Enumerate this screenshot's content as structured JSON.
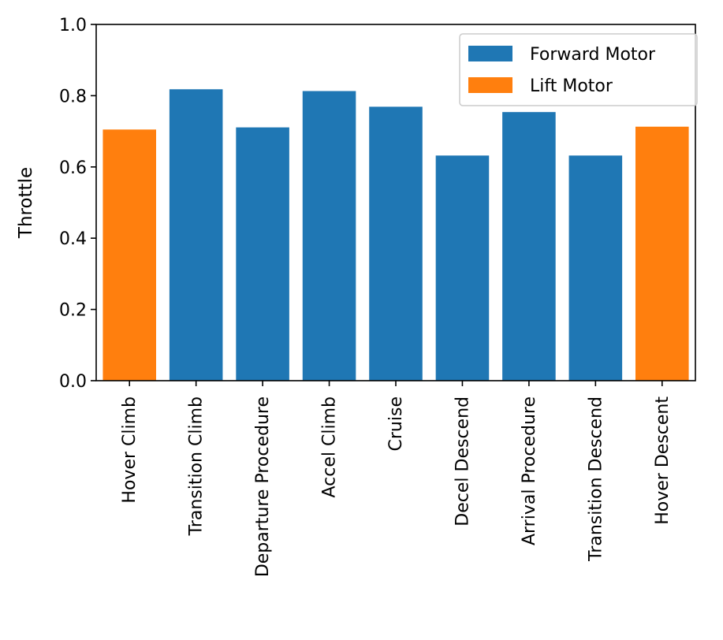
{
  "chart_data": {
    "type": "bar",
    "title": "",
    "xlabel": "",
    "ylabel": "Throttle",
    "ylim": [
      0,
      1.0
    ],
    "yticks": [
      "0.0",
      "0.2",
      "0.4",
      "0.6",
      "0.8",
      "1.0"
    ],
    "grid": false,
    "legend_position": "top-right",
    "categories": [
      "Hover Climb",
      "Transition Climb",
      "Departure Procedure",
      "Accel Climb",
      "Cruise",
      "Decel Descend",
      "Arrival Procedure",
      "Transition Descend",
      "Hover Descent"
    ],
    "values": [
      0.705,
      0.818,
      0.711,
      0.813,
      0.769,
      0.632,
      0.754,
      0.632,
      0.713
    ],
    "bar_series": [
      "Lift Motor",
      "Forward Motor",
      "Forward Motor",
      "Forward Motor",
      "Forward Motor",
      "Forward Motor",
      "Forward Motor",
      "Forward Motor",
      "Lift Motor"
    ],
    "series": [
      {
        "name": "Forward Motor",
        "color": "#1f77b4"
      },
      {
        "name": "Lift Motor",
        "color": "#ff7f0e"
      }
    ]
  }
}
